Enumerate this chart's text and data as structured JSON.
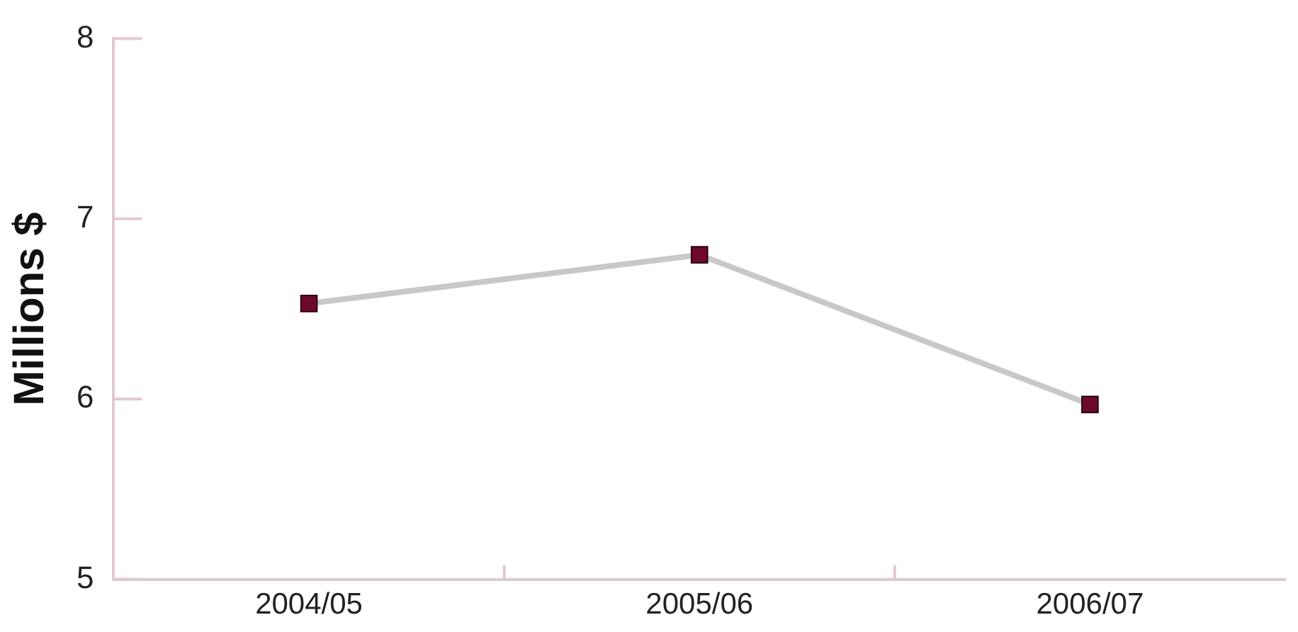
{
  "chart_data": {
    "type": "line",
    "ylabel": "Millions $",
    "categories": [
      "2004/05",
      "2005/06",
      "2006/07"
    ],
    "series": [
      {
        "color": "#6d0a2a",
        "values": [
          6.53,
          6.8,
          5.97
        ]
      }
    ],
    "ylim": [
      5,
      8
    ],
    "yticks": [
      5,
      6,
      7,
      8
    ],
    "grid": false,
    "legend": false,
    "marker": "square",
    "line_style": "solid"
  }
}
